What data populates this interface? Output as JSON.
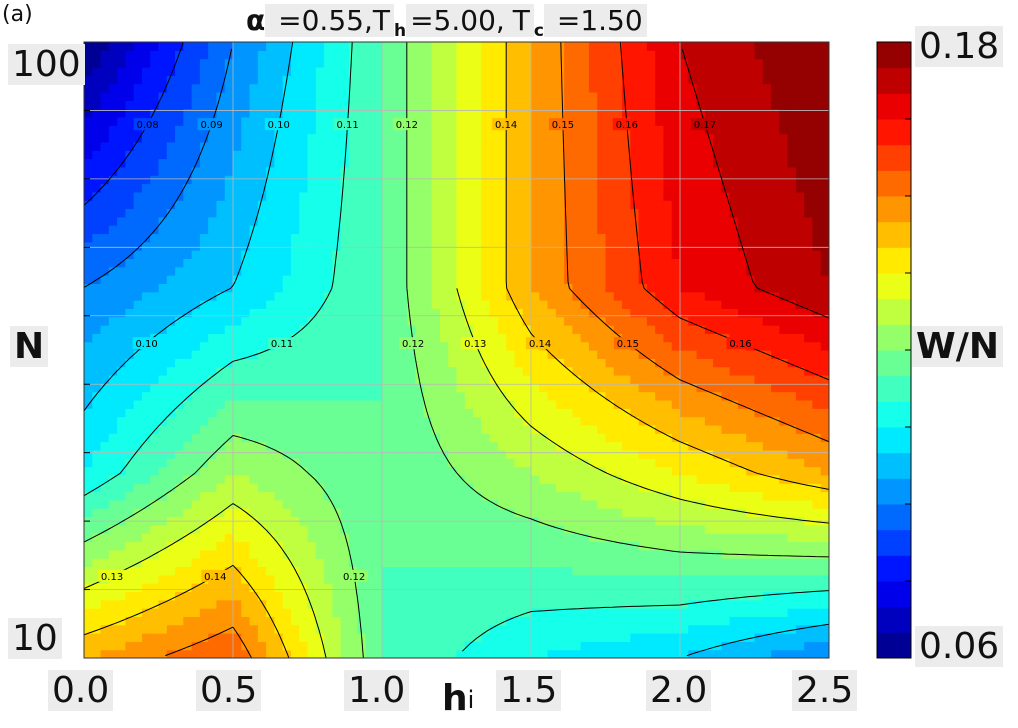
{
  "panel_label": "(a)",
  "title": {
    "alpha_sym": "α",
    "alpha_text": " =0.55,T",
    "h_sub": "h",
    "mid_text": "=5.00,",
    "c_base": "T",
    "c_sub": "c",
    "end_text": " =1.50"
  },
  "xaxis": {
    "label": "h",
    "label_sup": "i",
    "ticks": [
      "0.0",
      "0.5",
      "1.0",
      "1.5",
      "2.0",
      "2.5"
    ]
  },
  "yaxis": {
    "label": "N",
    "ticks": [
      "100",
      "10"
    ]
  },
  "colorbar": {
    "label": "W/N",
    "max_label": "0.18",
    "min_label": "0.06"
  },
  "chart_data": {
    "type": "heatmap",
    "subtype": "filled contour",
    "title": "α =0.55,Th=5.00,Tc =1.50",
    "xlabel": "hi",
    "ylabel": "N",
    "zlabel": "W/N",
    "xlim": [
      0.0,
      2.5
    ],
    "ylim": [
      10,
      100
    ],
    "yscale": "log",
    "zlim": [
      0.06,
      0.18
    ],
    "colormap": "jet",
    "grid": true,
    "x_ticks": [
      0.0,
      0.5,
      1.0,
      1.5,
      2.0,
      2.5
    ],
    "y_ticks": [
      10,
      100
    ],
    "contour_levels": [
      0.08,
      0.09,
      0.1,
      0.11,
      0.12,
      0.13,
      0.14,
      0.15,
      0.16,
      0.17
    ],
    "x": [
      0.0,
      0.5,
      1.0,
      1.5,
      2.0,
      2.5
    ],
    "y": [
      10,
      20,
      40,
      100
    ],
    "z": [
      [
        0.145,
        0.155,
        0.115,
        0.105,
        0.1,
        0.09
      ],
      [
        0.105,
        0.125,
        0.115,
        0.125,
        0.135,
        0.145
      ],
      [
        0.09,
        0.1,
        0.115,
        0.145,
        0.165,
        0.175
      ],
      [
        0.06,
        0.09,
        0.115,
        0.145,
        0.17,
        0.18
      ]
    ],
    "contour_labels": [
      "0.08",
      "0.09",
      "0.10",
      "0.11",
      "0.12",
      "0.13",
      "0.14",
      "0.15",
      "0.16",
      "0.17"
    ]
  }
}
